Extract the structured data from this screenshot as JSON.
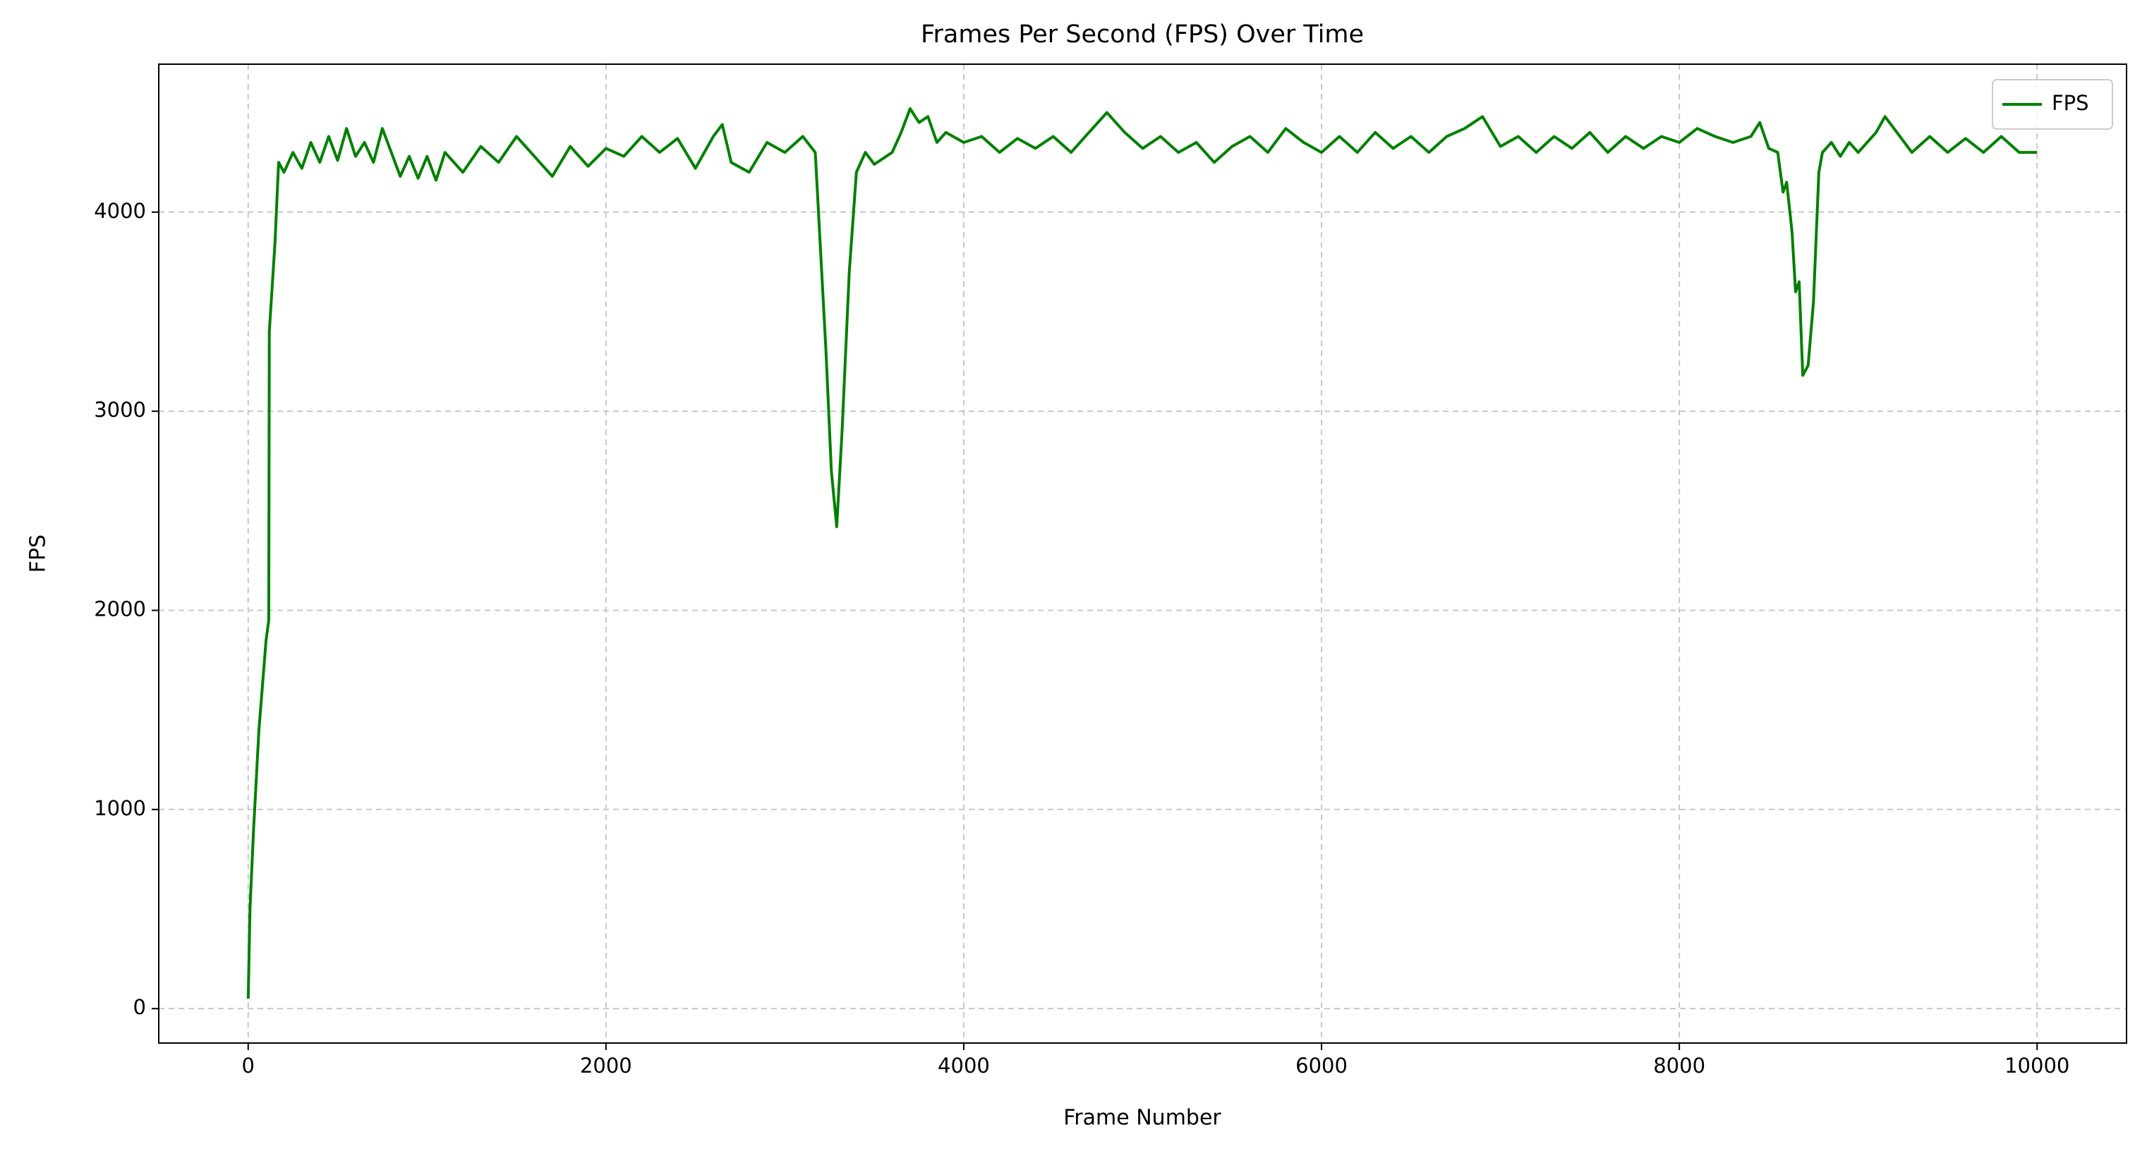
{
  "chart_data": {
    "type": "line",
    "title": "Frames Per Second (FPS) Over Time",
    "x_label": "Frame Number",
    "y_label": "FPS",
    "x": [
      0,
      10,
      30,
      60,
      100,
      115,
      118,
      150,
      170,
      200,
      250,
      300,
      350,
      400,
      450,
      500,
      550,
      600,
      650,
      700,
      750,
      800,
      850,
      900,
      950,
      1000,
      1050,
      1100,
      1200,
      1300,
      1400,
      1500,
      1600,
      1700,
      1800,
      1900,
      2000,
      2100,
      2200,
      2300,
      2400,
      2500,
      2600,
      2650,
      2700,
      2800,
      2900,
      3000,
      3100,
      3170,
      3200,
      3230,
      3260,
      3290,
      3320,
      3360,
      3400,
      3450,
      3500,
      3600,
      3650,
      3700,
      3750,
      3800,
      3850,
      3900,
      4000,
      4100,
      4200,
      4300,
      4400,
      4500,
      4600,
      4700,
      4800,
      4900,
      5000,
      5100,
      5200,
      5300,
      5400,
      5500,
      5600,
      5700,
      5800,
      5900,
      6000,
      6100,
      6200,
      6300,
      6400,
      6500,
      6600,
      6700,
      6800,
      6900,
      7000,
      7100,
      7200,
      7300,
      7400,
      7500,
      7600,
      7700,
      7800,
      7900,
      8000,
      8100,
      8200,
      8300,
      8400,
      8450,
      8500,
      8550,
      8580,
      8600,
      8630,
      8650,
      8670,
      8690,
      8720,
      8750,
      8780,
      8800,
      8850,
      8900,
      8950,
      9000,
      9100,
      9150,
      9200,
      9300,
      9400,
      9500,
      9600,
      9700,
      9800,
      9900,
      10000
    ],
    "series": [
      {
        "name": "FPS",
        "color": "#008000",
        "values": [
          50,
          500,
          900,
          1400,
          1850,
          1950,
          3400,
          3850,
          4250,
          4200,
          4300,
          4220,
          4350,
          4250,
          4380,
          4260,
          4420,
          4280,
          4350,
          4250,
          4420,
          4300,
          4180,
          4280,
          4170,
          4280,
          4160,
          4300,
          4200,
          4330,
          4250,
          4380,
          4280,
          4180,
          4330,
          4230,
          4320,
          4280,
          4380,
          4300,
          4370,
          4220,
          4380,
          4440,
          4250,
          4200,
          4350,
          4300,
          4380,
          4300,
          3800,
          3300,
          2700,
          2420,
          2900,
          3700,
          4200,
          4300,
          4240,
          4300,
          4400,
          4520,
          4450,
          4480,
          4350,
          4400,
          4350,
          4380,
          4300,
          4370,
          4320,
          4380,
          4300,
          4400,
          4500,
          4400,
          4320,
          4380,
          4300,
          4350,
          4250,
          4330,
          4380,
          4300,
          4420,
          4350,
          4300,
          4380,
          4300,
          4400,
          4320,
          4380,
          4300,
          4380,
          4420,
          4480,
          4330,
          4380,
          4300,
          4380,
          4320,
          4400,
          4300,
          4380,
          4320,
          4380,
          4350,
          4420,
          4380,
          4350,
          4380,
          4450,
          4320,
          4300,
          4100,
          4150,
          3900,
          3600,
          3650,
          3180,
          3230,
          3550,
          4200,
          4300,
          4350,
          4280,
          4350,
          4300,
          4400,
          4480,
          4420,
          4300,
          4380,
          4300,
          4370,
          4300,
          4380,
          4300,
          4300
        ]
      }
    ],
    "xlim": [
      -500,
      10500
    ],
    "xticks": [
      0,
      2000,
      4000,
      6000,
      8000,
      10000
    ],
    "ylim": [
      -173,
      4743
    ],
    "yticks": [
      0,
      1000,
      2000,
      3000,
      4000
    ],
    "grid": true,
    "legend": "upper right"
  }
}
